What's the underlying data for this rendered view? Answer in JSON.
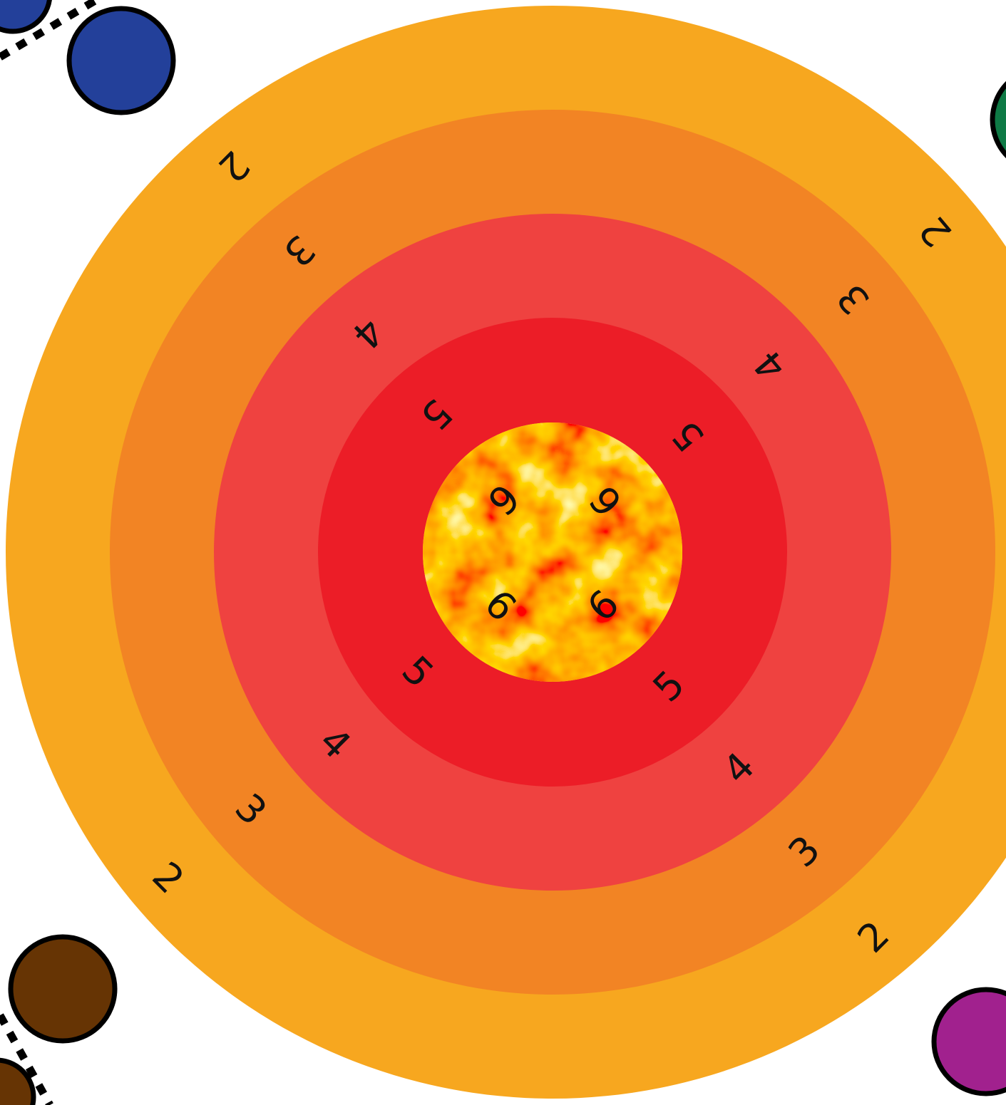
{
  "rings": [
    {
      "name": "ring-2",
      "label": "2",
      "color": "#F7A71F"
    },
    {
      "name": "ring-3",
      "label": "3",
      "color": "#F28424"
    },
    {
      "name": "ring-4",
      "label": "4",
      "color": "#EF4240"
    },
    {
      "name": "ring-5",
      "label": "5",
      "color": "#EC1D27"
    },
    {
      "name": "bullseye",
      "label": "6",
      "color": "#F5E048"
    }
  ],
  "score_labels": {
    "ring2": [
      "2",
      "2",
      "2",
      "2"
    ],
    "ring3": [
      "3",
      "3",
      "3",
      "3"
    ],
    "ring4": [
      "4",
      "4",
      "4",
      "4"
    ],
    "ring5": [
      "5",
      "5",
      "5",
      "5"
    ],
    "bullseye": [
      "6",
      "6",
      "6",
      "6"
    ]
  },
  "pieces": [
    {
      "name": "blue-piece",
      "color": "#23409A"
    },
    {
      "name": "green-piece",
      "color": "#0E7A45"
    },
    {
      "name": "brown-piece",
      "color": "#663404"
    },
    {
      "name": "purple-piece",
      "color": "#A1218E"
    }
  ]
}
